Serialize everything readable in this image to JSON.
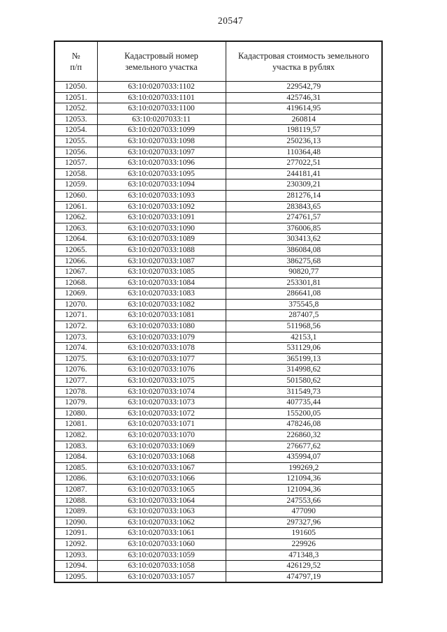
{
  "page": {
    "page_number": "20547"
  },
  "table": {
    "headers": {
      "col1_line1": "№",
      "col1_line2": "п/п",
      "col2_line1": "Кадастровый номер",
      "col2_line2": "земельного участка",
      "col3_line1": "Кадастровая стоимость земельного",
      "col3_line2": "участка в рублях"
    },
    "rows": [
      {
        "num": "12050.",
        "cadastral": "63:10:0207033:1102",
        "value": "229542,79"
      },
      {
        "num": "12051.",
        "cadastral": "63:10:0207033:1101",
        "value": "425746,31"
      },
      {
        "num": "12052.",
        "cadastral": "63:10:0207033:1100",
        "value": "419614,95"
      },
      {
        "num": "12053.",
        "cadastral": "63:10:0207033:11",
        "value": "260814"
      },
      {
        "num": "12054.",
        "cadastral": "63:10:0207033:1099",
        "value": "198119,57"
      },
      {
        "num": "12055.",
        "cadastral": "63:10:0207033:1098",
        "value": "250236,13"
      },
      {
        "num": "12056.",
        "cadastral": "63:10:0207033:1097",
        "value": "110364,48"
      },
      {
        "num": "12057.",
        "cadastral": "63:10:0207033:1096",
        "value": "277022,51"
      },
      {
        "num": "12058.",
        "cadastral": "63:10:0207033:1095",
        "value": "244181,41"
      },
      {
        "num": "12059.",
        "cadastral": "63:10:0207033:1094",
        "value": "230309,21"
      },
      {
        "num": "12060.",
        "cadastral": "63:10:0207033:1093",
        "value": "281276,14"
      },
      {
        "num": "12061.",
        "cadastral": "63:10:0207033:1092",
        "value": "283843,65"
      },
      {
        "num": "12062.",
        "cadastral": "63:10:0207033:1091",
        "value": "274761,57"
      },
      {
        "num": "12063.",
        "cadastral": "63:10:0207033:1090",
        "value": "376006,85"
      },
      {
        "num": "12064.",
        "cadastral": "63:10:0207033:1089",
        "value": "303413,62"
      },
      {
        "num": "12065.",
        "cadastral": "63:10:0207033:1088",
        "value": "386084,08"
      },
      {
        "num": "12066.",
        "cadastral": "63:10:0207033:1087",
        "value": "386275,68"
      },
      {
        "num": "12067.",
        "cadastral": "63:10:0207033:1085",
        "value": "90820,77"
      },
      {
        "num": "12068.",
        "cadastral": "63:10:0207033:1084",
        "value": "253301,81"
      },
      {
        "num": "12069.",
        "cadastral": "63:10:0207033:1083",
        "value": "286641,08"
      },
      {
        "num": "12070.",
        "cadastral": "63:10:0207033:1082",
        "value": "375545,8"
      },
      {
        "num": "12071.",
        "cadastral": "63:10:0207033:1081",
        "value": "287407,5"
      },
      {
        "num": "12072.",
        "cadastral": "63:10:0207033:1080",
        "value": "511968,56"
      },
      {
        "num": "12073.",
        "cadastral": "63:10:0207033:1079",
        "value": "42153,1"
      },
      {
        "num": "12074.",
        "cadastral": "63:10:0207033:1078",
        "value": "531129,06"
      },
      {
        "num": "12075.",
        "cadastral": "63:10:0207033:1077",
        "value": "365199,13"
      },
      {
        "num": "12076.",
        "cadastral": "63:10:0207033:1076",
        "value": "314998,62"
      },
      {
        "num": "12077.",
        "cadastral": "63:10:0207033:1075",
        "value": "501580,62"
      },
      {
        "num": "12078.",
        "cadastral": "63:10:0207033:1074",
        "value": "311549,73"
      },
      {
        "num": "12079.",
        "cadastral": "63:10:0207033:1073",
        "value": "407735,44"
      },
      {
        "num": "12080.",
        "cadastral": "63:10:0207033:1072",
        "value": "155200,05"
      },
      {
        "num": "12081.",
        "cadastral": "63:10:0207033:1071",
        "value": "478246,08"
      },
      {
        "num": "12082.",
        "cadastral": "63:10:0207033:1070",
        "value": "226860,32"
      },
      {
        "num": "12083.",
        "cadastral": "63:10:0207033:1069",
        "value": "276677,62"
      },
      {
        "num": "12084.",
        "cadastral": "63:10:0207033:1068",
        "value": "435994,07"
      },
      {
        "num": "12085.",
        "cadastral": "63:10:0207033:1067",
        "value": "199269,2"
      },
      {
        "num": "12086.",
        "cadastral": "63:10:0207033:1066",
        "value": "121094,36"
      },
      {
        "num": "12087.",
        "cadastral": "63:10:0207033:1065",
        "value": "121094,36"
      },
      {
        "num": "12088.",
        "cadastral": "63:10:0207033:1064",
        "value": "247553,66"
      },
      {
        "num": "12089.",
        "cadastral": "63:10:0207033:1063",
        "value": "477090"
      },
      {
        "num": "12090.",
        "cadastral": "63:10:0207033:1062",
        "value": "297327,96"
      },
      {
        "num": "12091.",
        "cadastral": "63:10:0207033:1061",
        "value": "191605"
      },
      {
        "num": "12092.",
        "cadastral": "63:10:0207033:1060",
        "value": "229926"
      },
      {
        "num": "12093.",
        "cadastral": "63:10:0207033:1059",
        "value": "471348,3"
      },
      {
        "num": "12094.",
        "cadastral": "63:10:0207033:1058",
        "value": "426129,52"
      },
      {
        "num": "12095.",
        "cadastral": "63:10:0207033:1057",
        "value": "474797,19"
      }
    ]
  }
}
